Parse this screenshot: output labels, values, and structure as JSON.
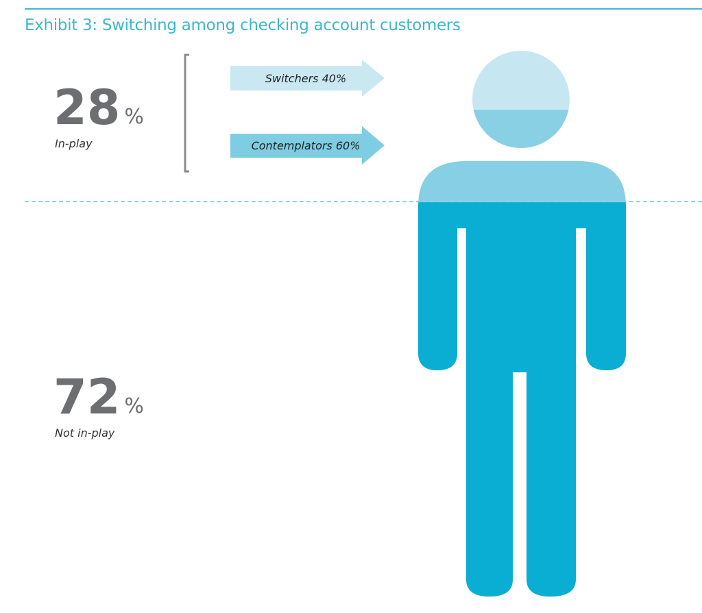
{
  "chart_data": {
    "type": "infographic",
    "title": "Exhibit 3: Switching among checking account customers",
    "segments": [
      {
        "label": "In-play",
        "value": 28,
        "breakdown": [
          {
            "label": "Switchers",
            "value": 40
          },
          {
            "label": "Contemplators",
            "value": 60
          }
        ]
      },
      {
        "label": "Not in-play",
        "value": 72
      }
    ],
    "text": {
      "in_play_value": "28",
      "in_play_pct": "%",
      "in_play_label": "In-play",
      "not_in_play_value": "72",
      "not_in_play_pct": "%",
      "not_in_play_label": "Not in-play",
      "switchers": "Switchers 40%",
      "contemplators": "Contemplators 60%"
    },
    "colors": {
      "title": "#3bb7cf",
      "figure": "#0aaed2",
      "figure_in_play": "#86cfe4",
      "head_light": "#c6e7f1",
      "head_dark": "#8ad0e5",
      "switchers": "#c9e8f2",
      "contemplators": "#7ecde3",
      "numbers": "#6d6e71"
    }
  }
}
